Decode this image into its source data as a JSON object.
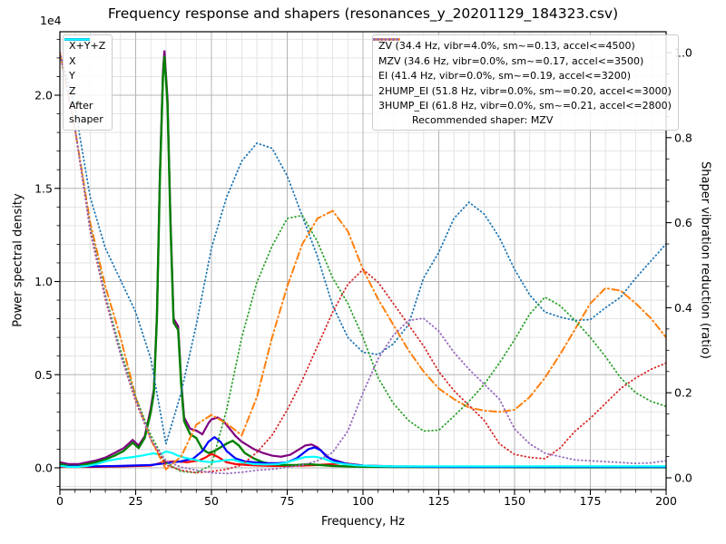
{
  "title": "Frequency response and shapers (resonances_y_20201129_184323.csv)",
  "axes": {
    "x": {
      "label": "Frequency, Hz",
      "min": 0,
      "max": 200,
      "major_ticks": [
        0,
        25,
        50,
        75,
        100,
        125,
        150,
        175,
        200
      ],
      "minor_step": 5
    },
    "y_left": {
      "label": "Power spectral density",
      "offset_text": "1e4",
      "major_ticks": [
        0.0,
        0.5,
        1.0,
        1.5,
        2.0
      ],
      "minor_step": 0.1
    },
    "y_right": {
      "label": "Shaper vibration reduction (ratio)",
      "major_ticks": [
        0.0,
        0.2,
        0.4,
        0.6,
        0.8,
        1.0
      ],
      "minor_step": 0.05
    }
  },
  "colors": {
    "grid_major": "#b4b4b4",
    "grid_minor": "#dedede",
    "spine": "#000000",
    "psd_total": "#800080",
    "psd_x": "#ff0000",
    "psd_y": "#008000",
    "psd_z": "#0000ff",
    "psd_after": "#00ffff",
    "zv": "#1f77b4",
    "mzv": "#ff7f0e",
    "ei": "#2ca02c",
    "hump2": "#d62728",
    "hump3": "#9467bd"
  },
  "legend_psd": {
    "items": [
      {
        "key": "psd-total",
        "label": "X+Y+Z",
        "color": "#800080",
        "style": "solid"
      },
      {
        "key": "psd-x",
        "label": "X",
        "color": "#ff0000",
        "style": "solid"
      },
      {
        "key": "psd-y",
        "label": "Y",
        "color": "#008000",
        "style": "solid"
      },
      {
        "key": "psd-z",
        "label": "Z",
        "color": "#0000ff",
        "style": "solid"
      },
      {
        "key": "psd-after-shaper",
        "label": "After\nshaper",
        "color": "#00ffff",
        "style": "solid",
        "twoline": true
      }
    ]
  },
  "legend_shapers": {
    "items": [
      {
        "key": "zv",
        "label": "ZV (34.4 Hz, vibr=4.0%, sm~=0.13, accel<=4500)",
        "color": "#1f77b4",
        "style": "dotted"
      },
      {
        "key": "mzv",
        "label": "MZV (34.6 Hz, vibr=0.0%, sm~=0.17, accel<=3500)",
        "color": "#ff7f0e",
        "style": "dashdot"
      },
      {
        "key": "ei",
        "label": "EI (41.4 Hz, vibr=0.0%, sm~=0.19, accel<=3200)",
        "color": "#2ca02c",
        "style": "dotted"
      },
      {
        "key": "2hump-ei",
        "label": "2HUMP_EI (51.8 Hz, vibr=0.0%, sm~=0.20, accel<=3000)",
        "color": "#d62728",
        "style": "dotted"
      },
      {
        "key": "3hump-ei",
        "label": "3HUMP_EI (61.8 Hz, vibr=0.0%, sm~=0.21, accel<=2800)",
        "color": "#9467bd",
        "style": "dotted"
      }
    ],
    "footer": "Recommended shaper: MZV"
  },
  "chart_data": {
    "type": "line",
    "xlabel": "Frequency, Hz",
    "ylabel_left": "Power spectral density",
    "ylabel_right": "Shaper vibration reduction (ratio)",
    "xlim": [
      0,
      200
    ],
    "ylim_left_1e4": [
      -0.12,
      2.34
    ],
    "ylim_right": [
      -0.028,
      1.05
    ],
    "grid": "major+minor",
    "psd_unit": "1e4",
    "series": [
      {
        "name": "X+Y+Z",
        "axis": "psd",
        "color": "#800080",
        "style": "solid",
        "width": 2.2,
        "x": [
          0,
          3,
          6,
          9,
          12,
          15,
          18,
          21,
          24,
          26,
          28,
          30,
          31,
          32,
          33,
          34,
          34.5,
          35.5,
          36.5,
          37.5,
          39,
          40,
          41,
          43,
          45,
          47,
          49,
          50,
          52,
          54,
          56,
          58,
          60,
          62,
          64,
          67,
          70,
          73,
          76,
          79,
          81,
          83,
          85,
          87,
          89,
          91,
          94,
          97,
          100,
          105,
          110,
          130,
          160,
          200
        ],
        "y": [
          0.03,
          0.02,
          0.02,
          0.03,
          0.04,
          0.055,
          0.08,
          0.105,
          0.15,
          0.12,
          0.17,
          0.32,
          0.42,
          0.82,
          1.58,
          2.13,
          2.24,
          1.98,
          1.33,
          0.8,
          0.76,
          0.47,
          0.27,
          0.21,
          0.2,
          0.18,
          0.24,
          0.26,
          0.27,
          0.25,
          0.21,
          0.17,
          0.14,
          0.12,
          0.1,
          0.08,
          0.065,
          0.06,
          0.07,
          0.1,
          0.12,
          0.125,
          0.11,
          0.08,
          0.05,
          0.04,
          0.025,
          0.018,
          0.012,
          0.01,
          0.008,
          0.006,
          0.005,
          0.004
        ]
      },
      {
        "name": "X",
        "axis": "psd",
        "color": "#ff0000",
        "style": "solid",
        "width": 2.2,
        "x": [
          0,
          10,
          20,
          30,
          34,
          38,
          42,
          46,
          48,
          50,
          52,
          55,
          58,
          62,
          66,
          70,
          75,
          80,
          85,
          90,
          93,
          96,
          100,
          105,
          110,
          130,
          200
        ],
        "y": [
          0.005,
          0.005,
          0.008,
          0.012,
          0.03,
          0.035,
          0.03,
          0.04,
          0.055,
          0.075,
          0.06,
          0.03,
          0.02,
          0.015,
          0.012,
          0.01,
          0.01,
          0.012,
          0.015,
          0.02,
          0.025,
          0.02,
          0.012,
          0.008,
          0.005,
          0.004,
          0.003
        ]
      },
      {
        "name": "Y",
        "axis": "psd",
        "color": "#008000",
        "style": "solid",
        "width": 2.4,
        "x": [
          0,
          3,
          6,
          9,
          12,
          15,
          18,
          21,
          24,
          26,
          28,
          30,
          31,
          32,
          33,
          34,
          34.5,
          35.5,
          36.5,
          37.5,
          39,
          40,
          41,
          43,
          45,
          47,
          49,
          51,
          53,
          55,
          57,
          59,
          61,
          64,
          67,
          70,
          74,
          78,
          82,
          86,
          90,
          95,
          100,
          110,
          130,
          160,
          200
        ],
        "y": [
          0.02,
          0.01,
          0.01,
          0.02,
          0.03,
          0.045,
          0.065,
          0.09,
          0.135,
          0.107,
          0.16,
          0.3,
          0.4,
          0.8,
          1.55,
          2.1,
          2.21,
          1.95,
          1.3,
          0.78,
          0.74,
          0.45,
          0.25,
          0.18,
          0.16,
          0.1,
          0.08,
          0.09,
          0.11,
          0.13,
          0.145,
          0.12,
          0.08,
          0.05,
          0.03,
          0.02,
          0.015,
          0.015,
          0.02,
          0.015,
          0.01,
          0.008,
          0.006,
          0.005,
          0.004,
          0.003,
          0.003
        ]
      },
      {
        "name": "Z",
        "axis": "psd",
        "color": "#0000ff",
        "style": "solid",
        "width": 2.2,
        "x": [
          0,
          10,
          20,
          30,
          35,
          40,
          44,
          47,
          49,
          51,
          53,
          55,
          58,
          61,
          64,
          68,
          72,
          75,
          78,
          80,
          82,
          84,
          86,
          88,
          91,
          95,
          100,
          105,
          110,
          130,
          200
        ],
        "y": [
          0.008,
          0.008,
          0.01,
          0.015,
          0.025,
          0.035,
          0.05,
          0.09,
          0.14,
          0.165,
          0.14,
          0.09,
          0.05,
          0.035,
          0.03,
          0.025,
          0.025,
          0.03,
          0.05,
          0.075,
          0.1,
          0.11,
          0.095,
          0.06,
          0.035,
          0.02,
          0.012,
          0.009,
          0.007,
          0.005,
          0.005
        ]
      },
      {
        "name": "After shaper",
        "axis": "psd",
        "color": "#00ffff",
        "style": "solid",
        "width": 2.2,
        "x": [
          0,
          3,
          6,
          9,
          12,
          15,
          18,
          21,
          24,
          27,
          29,
          31,
          33,
          35,
          37,
          39,
          41,
          44,
          47,
          50,
          52,
          54,
          57,
          60,
          64,
          68,
          72,
          75,
          78,
          81,
          84,
          87,
          90,
          94,
          98,
          103,
          110,
          130,
          200
        ],
        "y": [
          0.01,
          0.005,
          0.005,
          0.01,
          0.02,
          0.035,
          0.045,
          0.052,
          0.058,
          0.065,
          0.072,
          0.078,
          0.07,
          0.088,
          0.08,
          0.065,
          0.055,
          0.045,
          0.035,
          0.03,
          0.035,
          0.04,
          0.045,
          0.03,
          0.02,
          0.018,
          0.02,
          0.03,
          0.045,
          0.058,
          0.06,
          0.05,
          0.03,
          0.02,
          0.013,
          0.01,
          0.008,
          0.008,
          0.008
        ]
      },
      {
        "name": "ZV",
        "axis": "ratio",
        "color": "#1f77b4",
        "style": "dotted",
        "width": 1.8,
        "x": [
          0,
          5,
          10,
          15,
          20,
          25,
          30,
          35,
          40,
          45,
          50,
          55,
          60,
          65,
          70,
          75,
          80,
          85,
          90,
          95,
          100,
          105,
          110,
          115,
          120,
          125,
          130,
          135,
          140,
          145,
          150,
          155,
          160,
          165,
          170,
          175,
          180,
          185,
          190,
          195,
          200
        ],
        "y": [
          1.0,
          0.87,
          0.66,
          0.54,
          0.465,
          0.39,
          0.28,
          0.08,
          0.2,
          0.36,
          0.54,
          0.66,
          0.745,
          0.787,
          0.775,
          0.71,
          0.615,
          0.52,
          0.405,
          0.33,
          0.295,
          0.29,
          0.315,
          0.36,
          0.47,
          0.53,
          0.61,
          0.648,
          0.62,
          0.565,
          0.49,
          0.43,
          0.39,
          0.378,
          0.37,
          0.372,
          0.4,
          0.425,
          0.47,
          0.51,
          0.55
        ]
      },
      {
        "name": "MZV",
        "axis": "ratio",
        "color": "#ff7f0e",
        "style": "dashdot",
        "width": 2.0,
        "x": [
          0,
          5,
          10,
          15,
          20,
          25,
          30,
          35,
          40,
          45,
          50,
          55,
          60,
          65,
          70,
          75,
          80,
          85,
          90,
          95,
          100,
          105,
          110,
          115,
          120,
          125,
          130,
          135,
          140,
          145,
          150,
          155,
          160,
          165,
          170,
          175,
          180,
          185,
          190,
          195,
          200
        ],
        "y": [
          1.0,
          0.82,
          0.6,
          0.45,
          0.33,
          0.19,
          0.09,
          0.02,
          0.05,
          0.125,
          0.148,
          0.128,
          0.1,
          0.19,
          0.33,
          0.45,
          0.55,
          0.61,
          0.628,
          0.58,
          0.49,
          0.42,
          0.36,
          0.3,
          0.25,
          0.21,
          0.185,
          0.165,
          0.158,
          0.155,
          0.16,
          0.19,
          0.235,
          0.29,
          0.35,
          0.41,
          0.446,
          0.44,
          0.41,
          0.375,
          0.33
        ]
      },
      {
        "name": "EI",
        "axis": "ratio",
        "color": "#2ca02c",
        "style": "dotted",
        "width": 1.8,
        "x": [
          0,
          5,
          10,
          15,
          20,
          25,
          30,
          35,
          40,
          45,
          50,
          55,
          60,
          65,
          70,
          75,
          80,
          85,
          90,
          95,
          100,
          105,
          110,
          115,
          120,
          125,
          130,
          135,
          140,
          145,
          150,
          155,
          160,
          165,
          170,
          175,
          180,
          185,
          190,
          195,
          200
        ],
        "y": [
          1.0,
          0.82,
          0.59,
          0.43,
          0.3,
          0.19,
          0.1,
          0.035,
          0.015,
          0.012,
          0.03,
          0.16,
          0.33,
          0.46,
          0.545,
          0.61,
          0.617,
          0.555,
          0.47,
          0.41,
          0.33,
          0.235,
          0.175,
          0.135,
          0.11,
          0.112,
          0.145,
          0.18,
          0.22,
          0.27,
          0.325,
          0.385,
          0.425,
          0.405,
          0.37,
          0.33,
          0.285,
          0.235,
          0.2,
          0.18,
          0.168
        ]
      },
      {
        "name": "2HUMP_EI",
        "axis": "ratio",
        "color": "#d62728",
        "style": "dotted",
        "width": 1.8,
        "x": [
          0,
          5,
          10,
          15,
          20,
          25,
          30,
          35,
          40,
          45,
          50,
          55,
          60,
          65,
          70,
          75,
          80,
          85,
          90,
          95,
          100,
          105,
          110,
          115,
          120,
          125,
          130,
          135,
          140,
          145,
          150,
          155,
          160,
          165,
          170,
          175,
          180,
          185,
          190,
          195,
          200
        ],
        "y": [
          1.0,
          0.82,
          0.58,
          0.42,
          0.29,
          0.18,
          0.09,
          0.03,
          0.018,
          0.012,
          0.015,
          0.02,
          0.03,
          0.06,
          0.1,
          0.16,
          0.23,
          0.31,
          0.39,
          0.455,
          0.49,
          0.46,
          0.41,
          0.36,
          0.31,
          0.25,
          0.205,
          0.17,
          0.135,
          0.08,
          0.055,
          0.048,
          0.045,
          0.07,
          0.11,
          0.14,
          0.175,
          0.21,
          0.235,
          0.255,
          0.27
        ]
      },
      {
        "name": "3HUMP_EI",
        "axis": "ratio",
        "color": "#9467bd",
        "style": "dotted",
        "width": 1.8,
        "x": [
          0,
          5,
          10,
          15,
          20,
          25,
          30,
          35,
          40,
          45,
          50,
          55,
          60,
          65,
          70,
          75,
          80,
          85,
          90,
          95,
          100,
          105,
          110,
          115,
          120,
          125,
          130,
          135,
          140,
          145,
          150,
          155,
          160,
          165,
          170,
          175,
          180,
          185,
          190,
          195,
          200
        ],
        "y": [
          1.0,
          0.82,
          0.585,
          0.425,
          0.29,
          0.185,
          0.09,
          0.04,
          0.025,
          0.018,
          0.012,
          0.01,
          0.013,
          0.018,
          0.02,
          0.025,
          0.03,
          0.04,
          0.06,
          0.11,
          0.2,
          0.28,
          0.335,
          0.37,
          0.375,
          0.345,
          0.295,
          0.255,
          0.22,
          0.185,
          0.115,
          0.08,
          0.058,
          0.05,
          0.042,
          0.04,
          0.038,
          0.036,
          0.034,
          0.035,
          0.04
        ]
      }
    ]
  }
}
